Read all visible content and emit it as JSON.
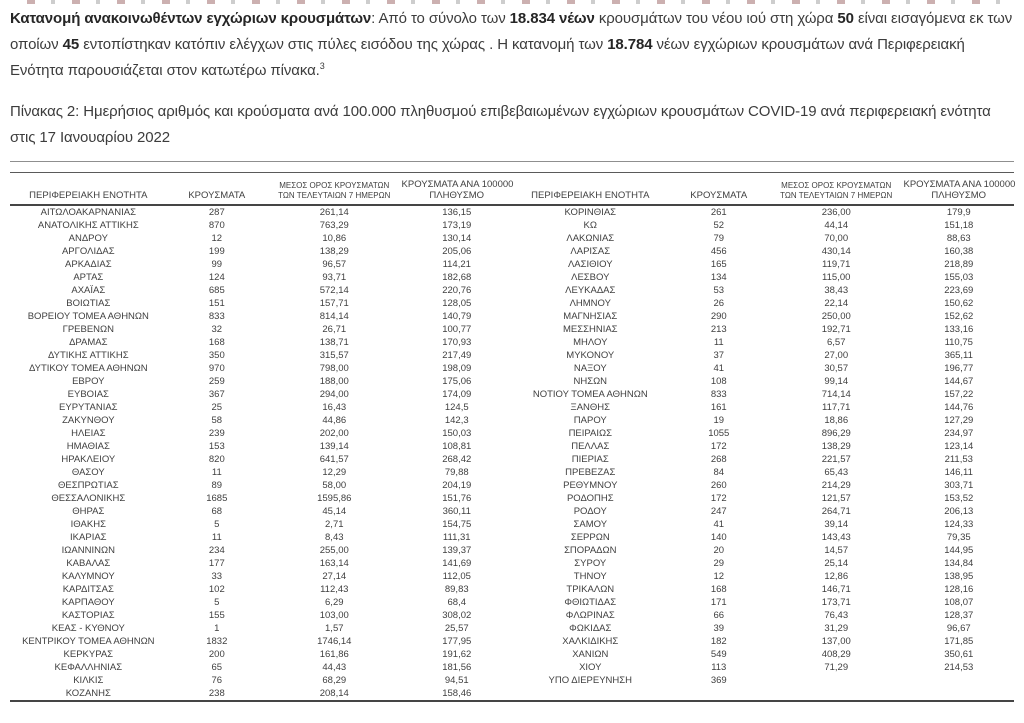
{
  "intro": {
    "segments": [
      {
        "text": "Κατανομή ανακοινωθέντων εγχώριων κρουσμάτων",
        "bold": true
      },
      {
        "text": ": Από το σύνολο των ",
        "bold": false
      },
      {
        "text": "18.834 νέων",
        "bold": true
      },
      {
        "text": " κρουσμάτων του νέου ιού στη χώρα ",
        "bold": false
      },
      {
        "text": "50",
        "bold": true
      },
      {
        "text": " είναι εισαγόμενα εκ των οποίων ",
        "bold": false
      },
      {
        "text": "45",
        "bold": true
      },
      {
        "text": " εντοπίστηκαν κατόπιν ελέγχων στις πύλες εισόδου της χώρας .  Η κατανομή των ",
        "bold": false
      },
      {
        "text": "18.784",
        "bold": true
      },
      {
        "text": " νέων εγχώριων κρουσμάτων ανά Περιφερειακή Ενότητα παρουσιάζεται στον κατωτέρω πίνακα.",
        "bold": false
      },
      {
        "text": "3",
        "bold": false,
        "sup": true
      }
    ]
  },
  "caption": {
    "text": "Πίνακας 2:  Ημερήσιος αριθμός και κρούσματα ανά 100.000 πληθυσμού επιβεβαιωμένων εγχώριων κρουσμάτων COVID-19 ανά περιφερειακή ενότητα στις 17 Ιανουαρίου 2022"
  },
  "table": {
    "headers": {
      "region": "ΠΕΡΙΦΕΡΕΙΑΚΗ ΕΝΟΤΗΤΑ",
      "cases": "ΚΡΟΥΣΜΑΤΑ",
      "avg7_line1": "ΜΕΣΟΣ ΟΡΟΣ ΚΡΟΥΣΜΑΤΩΝ",
      "avg7_line2": "ΤΩΝ ΤΕΛΕΥΤΑΙΩΝ 7 ΗΜΕΡΩΝ",
      "per100k_line1": "ΚΡΟΥΣΜΑΤΑ ΑΝΑ 100000",
      "per100k_line2": "ΠΛΗΘΥΣΜΟ"
    },
    "left_rows": [
      [
        "ΑΙΤΩΛΟΑΚΑΡΝΑΝΙΑΣ",
        "287",
        "261,14",
        "136,15"
      ],
      [
        "ΑΝΑΤΟΛΙΚΗΣ ΑΤΤΙΚΗΣ",
        "870",
        "763,29",
        "173,19"
      ],
      [
        "ΑΝΔΡΟΥ",
        "12",
        "10,86",
        "130,14"
      ],
      [
        "ΑΡΓΟΛΙΔΑΣ",
        "199",
        "138,29",
        "205,06"
      ],
      [
        "ΑΡΚΑΔΙΑΣ",
        "99",
        "96,57",
        "114,21"
      ],
      [
        "ΑΡΤΑΣ",
        "124",
        "93,71",
        "182,68"
      ],
      [
        "ΑΧΑΪΑΣ",
        "685",
        "572,14",
        "220,76"
      ],
      [
        "ΒΟΙΩΤΙΑΣ",
        "151",
        "157,71",
        "128,05"
      ],
      [
        "ΒΟΡΕΙΟΥ ΤΟΜΕΑ ΑΘΗΝΩΝ",
        "833",
        "814,14",
        "140,79"
      ],
      [
        "ΓΡΕΒΕΝΩΝ",
        "32",
        "26,71",
        "100,77"
      ],
      [
        "ΔΡΑΜΑΣ",
        "168",
        "138,71",
        "170,93"
      ],
      [
        "ΔΥΤΙΚΗΣ ΑΤΤΙΚΗΣ",
        "350",
        "315,57",
        "217,49"
      ],
      [
        "ΔΥΤΙΚΟΥ ΤΟΜΕΑ ΑΘΗΝΩΝ",
        "970",
        "798,00",
        "198,09"
      ],
      [
        "ΕΒΡΟΥ",
        "259",
        "188,00",
        "175,06"
      ],
      [
        "ΕΥΒΟΙΑΣ",
        "367",
        "294,00",
        "174,09"
      ],
      [
        "ΕΥΡΥΤΑΝΙΑΣ",
        "25",
        "16,43",
        "124,5"
      ],
      [
        "ΖΑΚΥΝΘΟΥ",
        "58",
        "44,86",
        "142,3"
      ],
      [
        "ΗΛΕΙΑΣ",
        "239",
        "202,00",
        "150,03"
      ],
      [
        "ΗΜΑΘΙΑΣ",
        "153",
        "139,14",
        "108,81"
      ],
      [
        "ΗΡΑΚΛΕΙΟΥ",
        "820",
        "641,57",
        "268,42"
      ],
      [
        "ΘΑΣΟΥ",
        "11",
        "12,29",
        "79,88"
      ],
      [
        "ΘΕΣΠΡΩΤΙΑΣ",
        "89",
        "58,00",
        "204,19"
      ],
      [
        "ΘΕΣΣΑΛΟΝΙΚΗΣ",
        "1685",
        "1595,86",
        "151,76"
      ],
      [
        "ΘΗΡΑΣ",
        "68",
        "45,14",
        "360,11"
      ],
      [
        "ΙΘΑΚΗΣ",
        "5",
        "2,71",
        "154,75"
      ],
      [
        "ΙΚΑΡΙΑΣ",
        "11",
        "8,43",
        "111,31"
      ],
      [
        "ΙΩΑΝΝΙΝΩΝ",
        "234",
        "255,00",
        "139,37"
      ],
      [
        "ΚΑΒΑΛΑΣ",
        "177",
        "163,14",
        "141,69"
      ],
      [
        "ΚΑΛΥΜΝΟΥ",
        "33",
        "27,14",
        "112,05"
      ],
      [
        "ΚΑΡΔΙΤΣΑΣ",
        "102",
        "112,43",
        "89,83"
      ],
      [
        "ΚΑΡΠΑΘΟΥ",
        "5",
        "6,29",
        "68,4"
      ],
      [
        "ΚΑΣΤΟΡΙΑΣ",
        "155",
        "103,00",
        "308,02"
      ],
      [
        "ΚΕΑΣ - ΚΥΘΝΟΥ",
        "1",
        "1,57",
        "25,57"
      ],
      [
        "ΚΕΝΤΡΙΚΟΥ ΤΟΜΕΑ ΑΘΗΝΩΝ",
        "1832",
        "1746,14",
        "177,95"
      ],
      [
        "ΚΕΡΚΥΡΑΣ",
        "200",
        "161,86",
        "191,62"
      ],
      [
        "ΚΕΦΑΛΛΗΝΙΑΣ",
        "65",
        "44,43",
        "181,56"
      ],
      [
        "ΚΙΛΚΙΣ",
        "76",
        "68,29",
        "94,51"
      ],
      [
        "ΚΟΖΑΝΗΣ",
        "238",
        "208,14",
        "158,46"
      ]
    ],
    "right_rows": [
      [
        "ΚΟΡΙΝΘΙΑΣ",
        "261",
        "236,00",
        "179,9"
      ],
      [
        "ΚΩ",
        "52",
        "44,14",
        "151,18"
      ],
      [
        "ΛΑΚΩΝΙΑΣ",
        "79",
        "70,00",
        "88,63"
      ],
      [
        "ΛΑΡΙΣΑΣ",
        "456",
        "430,14",
        "160,38"
      ],
      [
        "ΛΑΣΙΘΙΟΥ",
        "165",
        "119,71",
        "218,89"
      ],
      [
        "ΛΕΣΒΟΥ",
        "134",
        "115,00",
        "155,03"
      ],
      [
        "ΛΕΥΚΑΔΑΣ",
        "53",
        "38,43",
        "223,69"
      ],
      [
        "ΛΗΜΝΟΥ",
        "26",
        "22,14",
        "150,62"
      ],
      [
        "ΜΑΓΝΗΣΙΑΣ",
        "290",
        "250,00",
        "152,62"
      ],
      [
        "ΜΕΣΣΗΝΙΑΣ",
        "213",
        "192,71",
        "133,16"
      ],
      [
        "ΜΗΛΟΥ",
        "11",
        "6,57",
        "110,75"
      ],
      [
        "ΜΥΚΟΝΟΥ",
        "37",
        "27,00",
        "365,11"
      ],
      [
        "ΝΑΞΟΥ",
        "41",
        "30,57",
        "196,77"
      ],
      [
        "ΝΗΣΩΝ",
        "108",
        "99,14",
        "144,67"
      ],
      [
        "ΝΟΤΙΟΥ ΤΟΜΕΑ ΑΘΗΝΩΝ",
        "833",
        "714,14",
        "157,22"
      ],
      [
        "ΞΑΝΘΗΣ",
        "161",
        "117,71",
        "144,76"
      ],
      [
        "ΠΑΡΟΥ",
        "19",
        "18,86",
        "127,29"
      ],
      [
        "ΠΕΙΡΑΙΩΣ",
        "1055",
        "896,29",
        "234,97"
      ],
      [
        "ΠΕΛΛΑΣ",
        "172",
        "138,29",
        "123,14"
      ],
      [
        "ΠΙΕΡΙΑΣ",
        "268",
        "221,57",
        "211,53"
      ],
      [
        "ΠΡΕΒΕΖΑΣ",
        "84",
        "65,43",
        "146,11"
      ],
      [
        "ΡΕΘΥΜΝΟΥ",
        "260",
        "214,29",
        "303,71"
      ],
      [
        "ΡΟΔΟΠΗΣ",
        "172",
        "121,57",
        "153,52"
      ],
      [
        "ΡΟΔΟΥ",
        "247",
        "264,71",
        "206,13"
      ],
      [
        "ΣΑΜΟΥ",
        "41",
        "39,14",
        "124,33"
      ],
      [
        "ΣΕΡΡΩΝ",
        "140",
        "143,43",
        "79,35"
      ],
      [
        "ΣΠΟΡΑΔΩΝ",
        "20",
        "14,57",
        "144,95"
      ],
      [
        "ΣΥΡΟΥ",
        "29",
        "25,14",
        "134,84"
      ],
      [
        "ΤΗΝΟΥ",
        "12",
        "12,86",
        "138,95"
      ],
      [
        "ΤΡΙΚΑΛΩΝ",
        "168",
        "146,71",
        "128,16"
      ],
      [
        "ΦΘΙΩΤΙΔΑΣ",
        "171",
        "173,71",
        "108,07"
      ],
      [
        "ΦΛΩΡΙΝΑΣ",
        "66",
        "76,43",
        "128,37"
      ],
      [
        "ΦΩΚΙΔΑΣ",
        "39",
        "31,29",
        "96,67"
      ],
      [
        "ΧΑΛΚΙΔΙΚΗΣ",
        "182",
        "137,00",
        "171,85"
      ],
      [
        "ΧΑΝΙΩΝ",
        "549",
        "408,29",
        "350,61"
      ],
      [
        "ΧΙΟΥ",
        "113",
        "71,29",
        "214,53"
      ],
      [
        "ΥΠΟ ΔΙΕΡΕΥΝΗΣΗ",
        "369",
        "",
        ""
      ]
    ]
  },
  "colors": {
    "text": "#3c3c3c",
    "rule_light": "#8f8f8f",
    "rule_dark": "#454545"
  }
}
